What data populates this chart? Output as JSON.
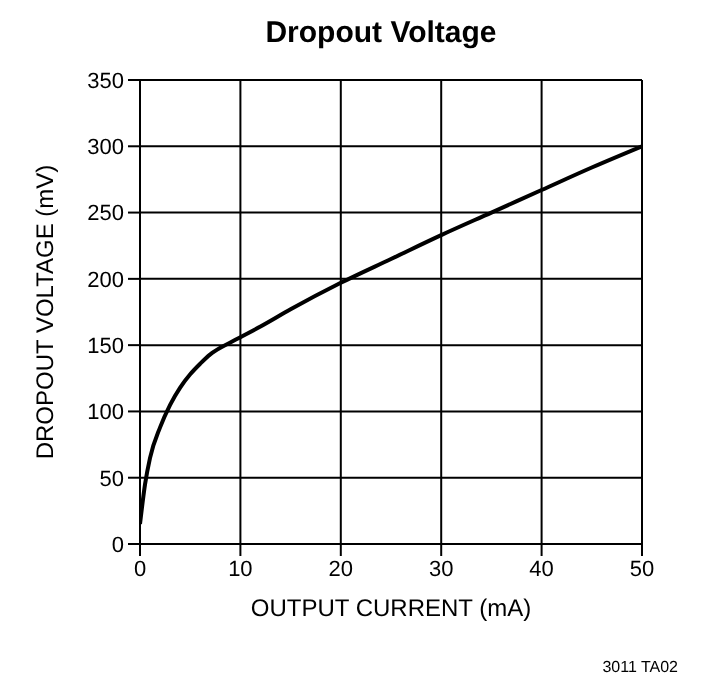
{
  "chart_data": {
    "type": "line",
    "title": "Dropout Voltage",
    "xlabel": "OUTPUT CURRENT (mA)",
    "ylabel": "DROPOUT VOLTAGE (mV)",
    "x": [
      0,
      0.5,
      1,
      2,
      3,
      4,
      5,
      6,
      7,
      8,
      9,
      10,
      12,
      15,
      20,
      25,
      30,
      35,
      40,
      45,
      50
    ],
    "series": [
      {
        "color": "#000000",
        "values": [
          15,
          45,
          65,
          88,
          105,
          118,
          128,
          136,
          143,
          148,
          152,
          156,
          164,
          177,
          197,
          215,
          233,
          250,
          267,
          284,
          300
        ]
      }
    ],
    "xlim": [
      0,
      50
    ],
    "xticks": [
      0,
      10,
      20,
      30,
      40,
      50
    ],
    "ylim": [
      0,
      350
    ],
    "yticks": [
      0,
      50,
      100,
      150,
      200,
      250,
      300,
      350
    ],
    "grid": true,
    "marker": "none",
    "line_style": "solid",
    "annotations": [
      "3011 TA02"
    ]
  }
}
